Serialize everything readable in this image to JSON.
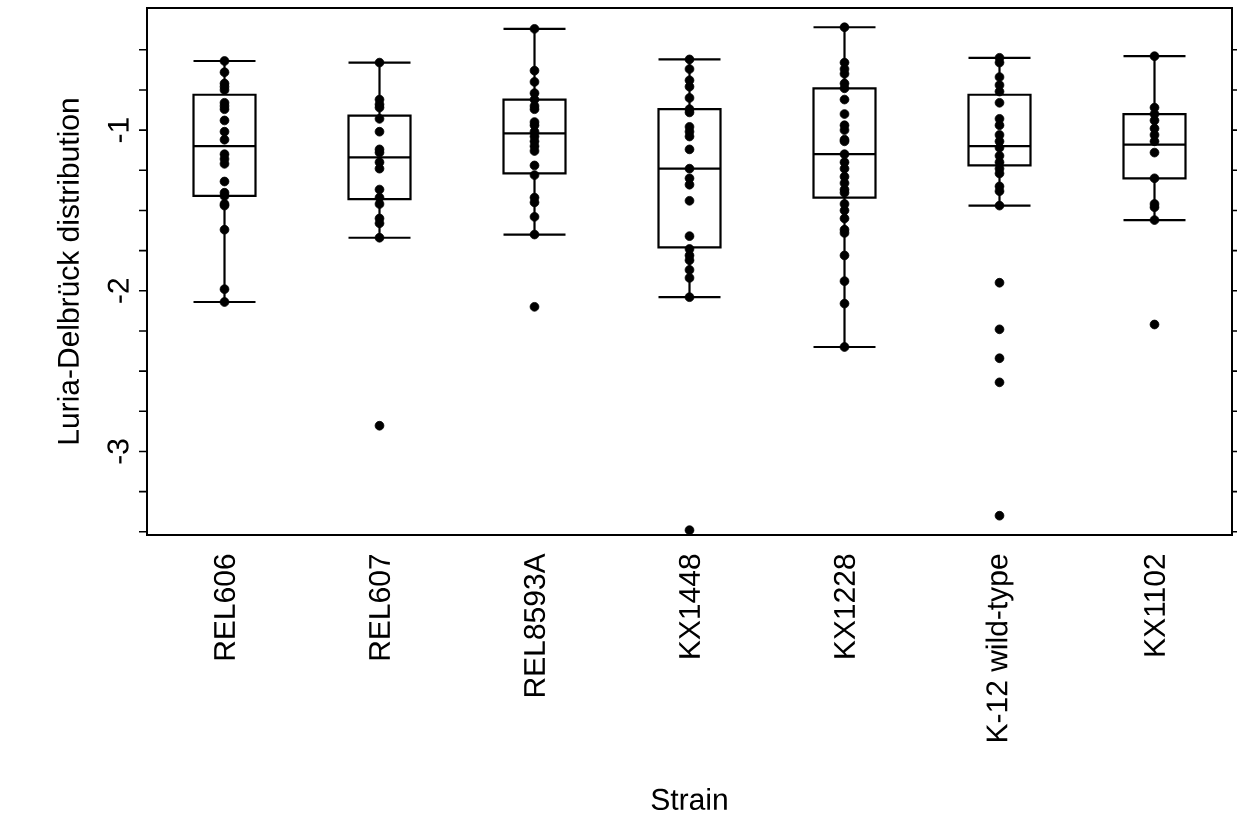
{
  "chart_data": {
    "type": "box",
    "xlabel": "Strain",
    "ylabel": "Luria-Delbrück distribution",
    "categories": [
      "REL606",
      "REL607",
      "REL8593A",
      "KX1448",
      "KX1228",
      "K-12 wild-type",
      "KX1102"
    ],
    "ylim": [
      -3.52,
      -0.24
    ],
    "yticks": [
      {
        "value": -0.5,
        "label": null
      },
      {
        "value": -0.75,
        "label": null
      },
      -1,
      {
        "value": -1.25,
        "label": null
      },
      {
        "value": -1.5,
        "label": null
      },
      {
        "value": -1.75,
        "label": null
      },
      -2,
      {
        "value": -2.25,
        "label": null
      },
      {
        "value": -2.5,
        "label": null
      },
      {
        "value": -2.75,
        "label": null
      },
      -3,
      {
        "value": -3.25,
        "label": null
      },
      {
        "value": -3.5,
        "label": null
      }
    ],
    "marker": "circle",
    "series": [
      {
        "type": "box",
        "color": "#000000",
        "boxes": [
          {
            "low": -2.07,
            "q1": -1.41,
            "median": -1.1,
            "q3": -0.78,
            "high": -0.57
          },
          {
            "low": -1.67,
            "q1": -1.43,
            "median": -1.17,
            "q3": -0.91,
            "high": -0.58,
            "outliers": [
              -2.84
            ]
          },
          {
            "low": -1.65,
            "q1": -1.27,
            "median": -1.02,
            "q3": -0.81,
            "high": -0.37,
            "outliers": [
              -2.1
            ]
          },
          {
            "low": -2.04,
            "q1": -1.73,
            "median": -1.24,
            "q3": -0.87,
            "high": -0.56,
            "outliers": [
              -3.49
            ]
          },
          {
            "low": -2.35,
            "q1": -1.42,
            "median": -1.15,
            "q3": -0.74,
            "high": -0.36
          },
          {
            "low": -1.47,
            "q1": -1.22,
            "median": -1.1,
            "q3": -0.78,
            "high": -0.55,
            "outliers": [
              -1.95,
              -2.24,
              -2.42,
              -2.57,
              -3.4
            ]
          },
          {
            "low": -1.56,
            "q1": -1.3,
            "median": -1.09,
            "q3": -0.9,
            "high": -0.54,
            "outliers": [
              -2.21
            ]
          }
        ]
      },
      {
        "type": "scatter",
        "color": "#000000",
        "x": [
          "REL606",
          "REL606",
          "REL606",
          "REL606",
          "REL606",
          "REL606",
          "REL606",
          "REL606",
          "REL606",
          "REL606",
          "REL606",
          "REL606",
          "REL606",
          "REL606",
          "REL606",
          "REL606",
          "REL606",
          "REL606",
          "REL606",
          "REL606",
          "REL606",
          "REL606",
          "REL607",
          "REL607",
          "REL607",
          "REL607",
          "REL607",
          "REL607",
          "REL607",
          "REL607",
          "REL607",
          "REL607",
          "REL607",
          "REL607",
          "REL607",
          "REL607",
          "REL607",
          "REL607",
          "REL8593A",
          "REL8593A",
          "REL8593A",
          "REL8593A",
          "REL8593A",
          "REL8593A",
          "REL8593A",
          "REL8593A",
          "REL8593A",
          "REL8593A",
          "REL8593A",
          "REL8593A",
          "REL8593A",
          "REL8593A",
          "REL8593A",
          "REL8593A",
          "REL8593A",
          "REL8593A",
          "REL8593A",
          "REL8593A",
          "KX1448",
          "KX1448",
          "KX1448",
          "KX1448",
          "KX1448",
          "KX1448",
          "KX1448",
          "KX1448",
          "KX1448",
          "KX1448",
          "KX1448",
          "KX1448",
          "KX1448",
          "KX1448",
          "KX1448",
          "KX1448",
          "KX1448",
          "KX1448",
          "KX1448",
          "KX1448",
          "KX1448",
          "KX1448",
          "KX1228",
          "KX1228",
          "KX1228",
          "KX1228",
          "KX1228",
          "KX1228",
          "KX1228",
          "KX1228",
          "KX1228",
          "KX1228",
          "KX1228",
          "KX1228",
          "KX1228",
          "KX1228",
          "KX1228",
          "KX1228",
          "KX1228",
          "KX1228",
          "KX1228",
          "KX1228",
          "KX1228",
          "KX1228",
          "KX1228",
          "KX1228",
          "KX1228",
          "KX1228",
          "KX1228",
          "KX1228",
          "K-12 wild-type",
          "K-12 wild-type",
          "K-12 wild-type",
          "K-12 wild-type",
          "K-12 wild-type",
          "K-12 wild-type",
          "K-12 wild-type",
          "K-12 wild-type",
          "K-12 wild-type",
          "K-12 wild-type",
          "K-12 wild-type",
          "K-12 wild-type",
          "K-12 wild-type",
          "K-12 wild-type",
          "K-12 wild-type",
          "K-12 wild-type",
          "K-12 wild-type",
          "K-12 wild-type",
          "KX1102",
          "KX1102",
          "KX1102",
          "KX1102",
          "KX1102",
          "KX1102",
          "KX1102",
          "KX1102",
          "KX1102",
          "KX1102",
          "KX1102",
          "KX1102"
        ],
        "values": [
          -0.57,
          -0.64,
          -0.71,
          -0.73,
          -0.75,
          -0.83,
          -0.85,
          -0.87,
          -0.94,
          -1.01,
          -1.06,
          -1.15,
          -1.18,
          -1.21,
          -1.32,
          -1.39,
          -1.41,
          -1.46,
          -1.47,
          -1.62,
          -1.99,
          -2.07,
          -0.58,
          -0.81,
          -0.84,
          -0.86,
          -0.93,
          -1.01,
          -1.12,
          -1.14,
          -1.2,
          -1.24,
          -1.37,
          -1.42,
          -1.46,
          -1.55,
          -1.58,
          -1.67,
          -0.37,
          -0.63,
          -0.7,
          -0.77,
          -0.81,
          -0.85,
          -0.87,
          -0.95,
          -0.97,
          -1.01,
          -1.04,
          -1.07,
          -1.1,
          -1.13,
          -1.22,
          -1.28,
          -1.42,
          -1.45,
          -1.54,
          -1.65,
          -0.56,
          -0.62,
          -0.69,
          -0.73,
          -0.8,
          -0.87,
          -0.89,
          -0.98,
          -1.01,
          -1.04,
          -1.12,
          -1.24,
          -1.3,
          -1.34,
          -1.44,
          -1.66,
          -1.74,
          -1.78,
          -1.81,
          -1.87,
          -1.92,
          -2.04,
          -0.36,
          -0.58,
          -0.62,
          -0.65,
          -0.71,
          -0.74,
          -0.81,
          -0.9,
          -0.97,
          -1.0,
          -1.06,
          -1.07,
          -1.15,
          -1.2,
          -1.24,
          -1.29,
          -1.33,
          -1.37,
          -1.39,
          -1.46,
          -1.5,
          -1.55,
          -1.62,
          -1.64,
          -1.78,
          -1.94,
          -2.08,
          -2.35,
          -0.55,
          -0.58,
          -0.67,
          -0.72,
          -0.76,
          -0.83,
          -0.93,
          -0.97,
          -1.03,
          -1.07,
          -1.11,
          -1.16,
          -1.2,
          -1.24,
          -1.27,
          -1.35,
          -1.38,
          -1.47,
          -0.54,
          -0.86,
          -0.9,
          -0.94,
          -0.99,
          -1.03,
          -1.07,
          -1.14,
          -1.3,
          -1.46,
          -1.48,
          -1.56
        ]
      }
    ]
  }
}
